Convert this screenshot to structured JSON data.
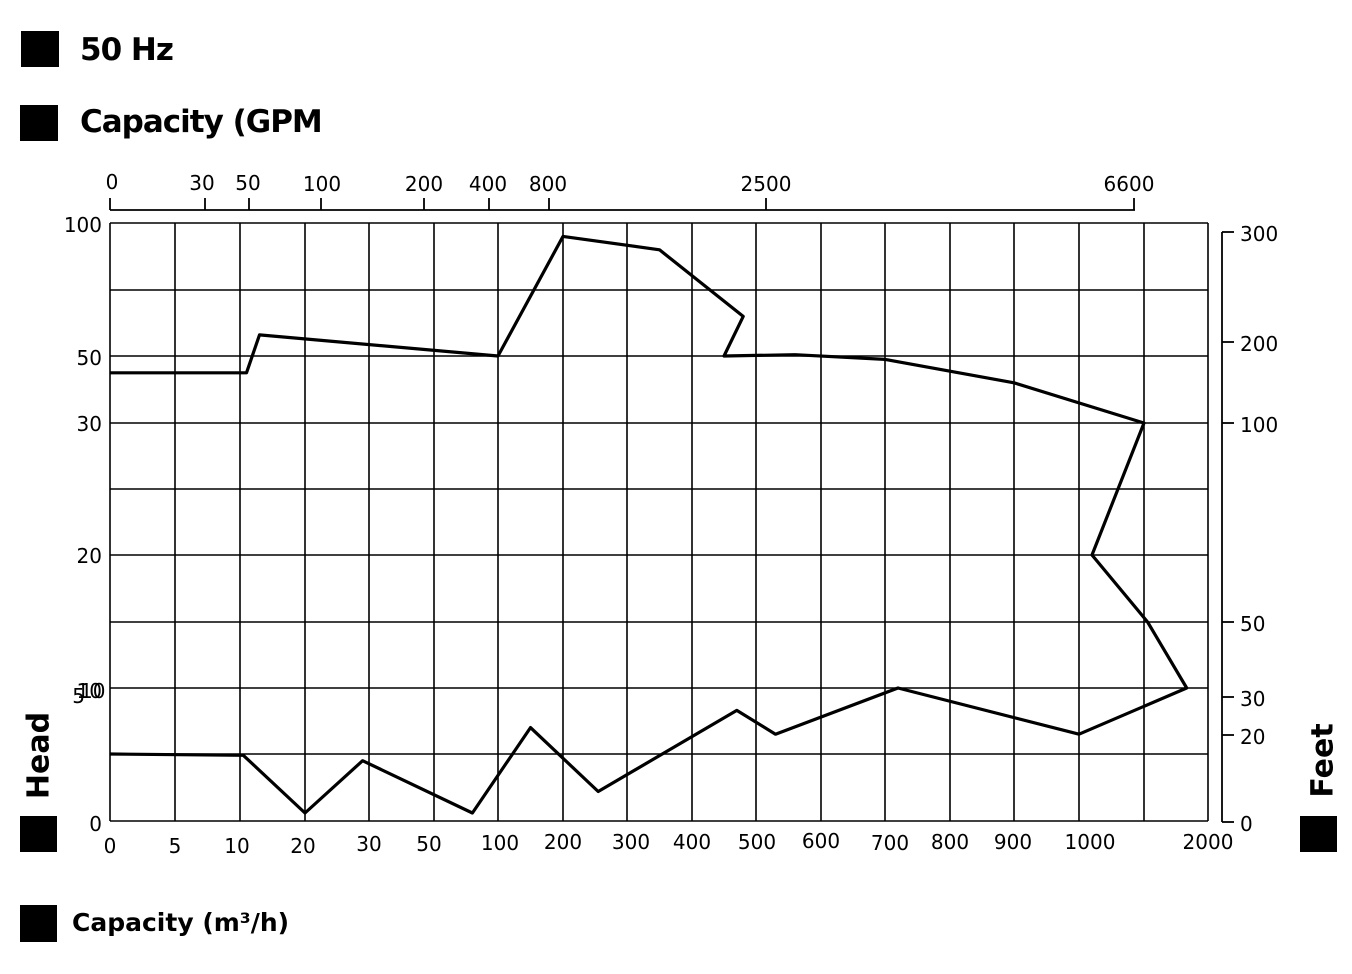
{
  "title": "50 Hz",
  "top_axis_title": "Capacity (GPM",
  "bottom_axis_title": "Capacity  (m³/h)",
  "left_axis_title": "Head",
  "right_axis_title": "Feet",
  "chart_data": {
    "type": "line",
    "grid": true,
    "legend": "none",
    "x_axis_bottom": {
      "label": "Capacity  (m³/h)",
      "ticks": [
        "0",
        "5",
        "10",
        "20",
        "30",
        "50",
        "100",
        "200",
        "300",
        "400",
        "500",
        "600",
        "700",
        "800",
        "900",
        "1000",
        "2000"
      ]
    },
    "x_axis_top": {
      "label": "Capacity (GPM",
      "ticks": [
        {
          "label": "0",
          "at_m3h": 0
        },
        {
          "label": "30",
          "at_m3h": 7.5
        },
        {
          "label": "50",
          "at_m3h": 10.5
        },
        {
          "label": "100",
          "at_m3h": 23
        },
        {
          "label": "200",
          "at_m3h": 45
        },
        {
          "label": "400",
          "at_m3h": 85
        },
        {
          "label": "800",
          "at_m3h": 190
        },
        {
          "label": "2500",
          "at_m3h": 550
        },
        {
          "label": "6600",
          "at_m3h": 1100
        }
      ]
    },
    "y_axis_left": {
      "label": "Head",
      "ticks": [
        "0",
        "5",
        "10",
        "20",
        "30",
        "50",
        "100"
      ],
      "tick_overlap_label": "5"
    },
    "y_axis_right": {
      "label": "Feet",
      "ticks": [
        {
          "label": "0",
          "at_head": 0
        },
        {
          "label": "20",
          "at_head": 7
        },
        {
          "label": "30",
          "at_head": 9.5
        },
        {
          "label": "50",
          "at_head": 15
        },
        {
          "label": "100",
          "at_head": 30
        },
        {
          "label": "200",
          "at_head": 51
        },
        {
          "label": "300",
          "at_head": 94
        }
      ]
    },
    "series": [
      {
        "points": [
          {
            "x": 0,
            "y": 45
          },
          {
            "x": 11,
            "y": 45
          },
          {
            "x": 13,
            "y": 58
          },
          {
            "x": 100,
            "y": 50
          },
          {
            "x": 200,
            "y": 95
          },
          {
            "x": 350,
            "y": 90
          },
          {
            "x": 480,
            "y": 65
          },
          {
            "x": 450,
            "y": 50
          },
          {
            "x": 560,
            "y": 50.5
          },
          {
            "x": 700,
            "y": 49
          },
          {
            "x": 900,
            "y": 42
          },
          {
            "x": 1100,
            "y": 30
          },
          {
            "x": 1020,
            "y": 20
          },
          {
            "x": 1150,
            "y": 15
          },
          {
            "x": 1700,
            "y": 10
          },
          {
            "x": 1000,
            "y": 6.5
          },
          {
            "x": 720,
            "y": 10
          },
          {
            "x": 530,
            "y": 6.5
          },
          {
            "x": 470,
            "y": 8.3
          },
          {
            "x": 255,
            "y": 2.2
          },
          {
            "x": 150,
            "y": 7
          },
          {
            "x": 80,
            "y": 0.6
          },
          {
            "x": 29,
            "y": 4.5
          },
          {
            "x": 20,
            "y": 0.6
          },
          {
            "x": 10.5,
            "y": 4.9
          },
          {
            "x": 0,
            "y": 5
          }
        ]
      }
    ]
  }
}
